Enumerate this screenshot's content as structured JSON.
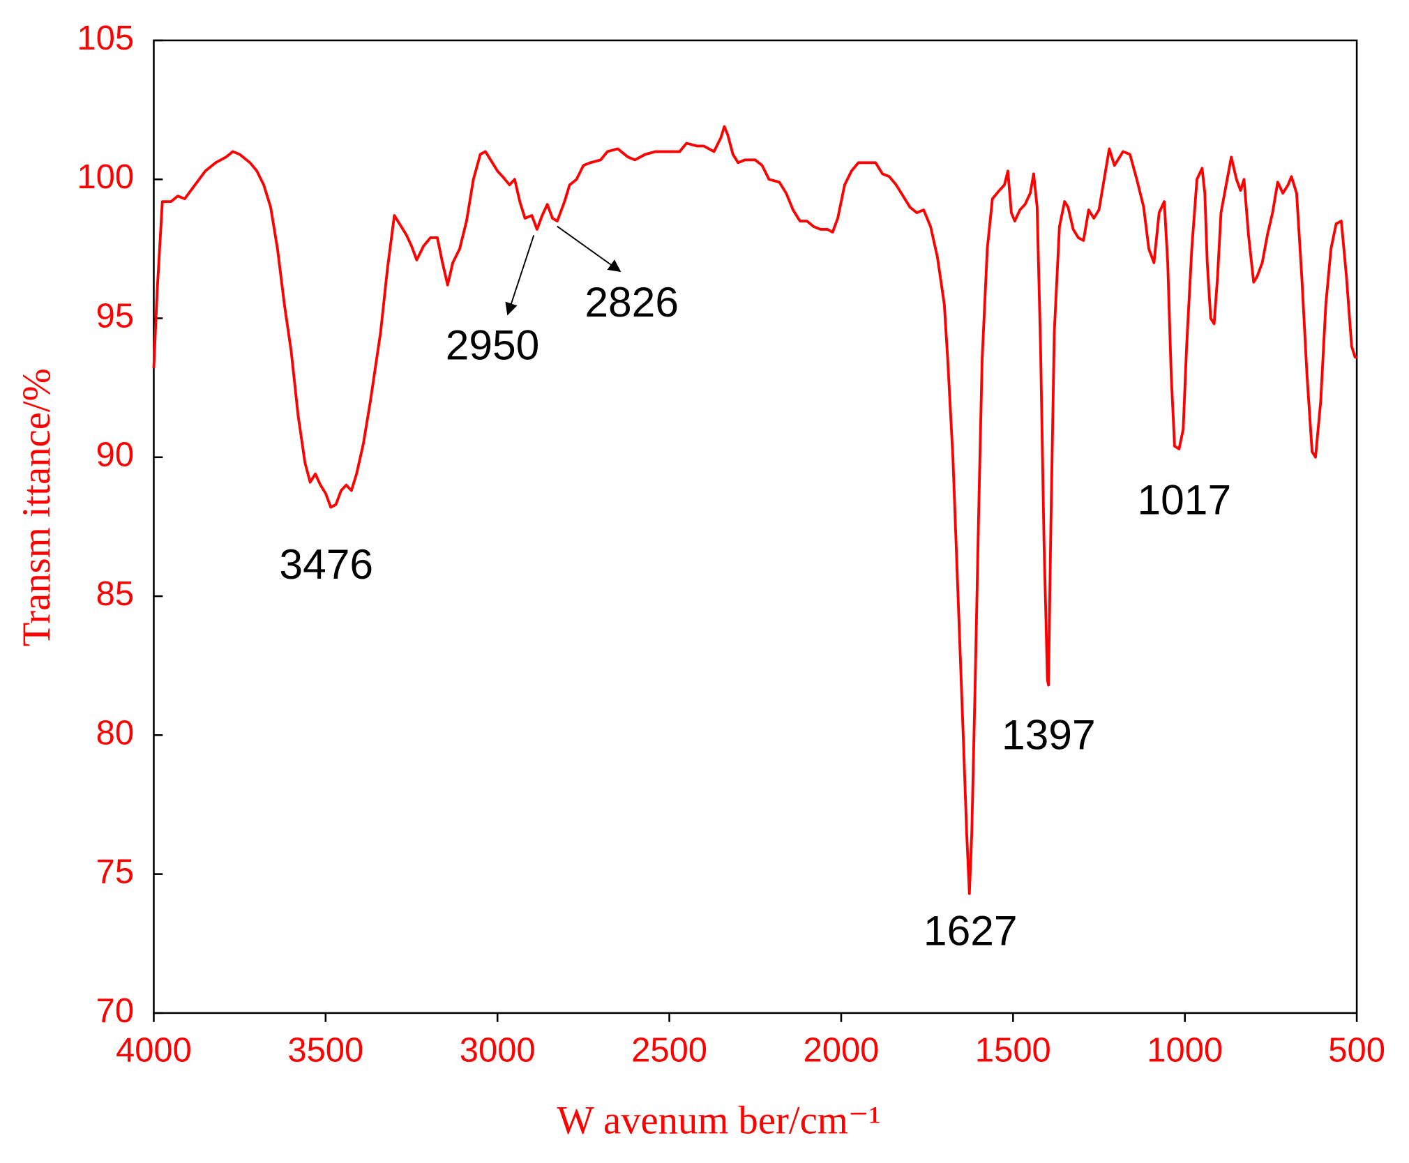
{
  "chart_data": {
    "type": "line",
    "xlabel": "W avenum ber/cm⁻¹",
    "ylabel": "Transm ittance/%",
    "color": "#ff0000",
    "xlim": [
      4000,
      500
    ],
    "xticks": [
      4000,
      3500,
      3000,
      2500,
      2000,
      1500,
      1000,
      500
    ],
    "ylim": [
      70,
      105
    ],
    "yticks": [
      70,
      75,
      80,
      85,
      90,
      95,
      100,
      105
    ],
    "annotations": [
      "3476",
      "2950",
      "2826",
      "1627",
      "1397",
      "1017"
    ],
    "x": [
      4000,
      3990,
      3975,
      3950,
      3930,
      3910,
      3880,
      3850,
      3820,
      3790,
      3770,
      3750,
      3720,
      3700,
      3680,
      3660,
      3640,
      3620,
      3600,
      3580,
      3560,
      3545,
      3530,
      3515,
      3500,
      3485,
      3470,
      3455,
      3440,
      3425,
      3410,
      3390,
      3370,
      3340,
      3320,
      3300,
      3285,
      3265,
      3250,
      3235,
      3215,
      3195,
      3175,
      3160,
      3145,
      3130,
      3110,
      3090,
      3070,
      3050,
      3035,
      3015,
      3000,
      2985,
      2965,
      2950,
      2935,
      2920,
      2900,
      2885,
      2870,
      2855,
      2840,
      2826,
      2805,
      2790,
      2770,
      2750,
      2730,
      2700,
      2680,
      2650,
      2620,
      2600,
      2570,
      2540,
      2500,
      2470,
      2450,
      2420,
      2400,
      2370,
      2350,
      2340,
      2330,
      2315,
      2300,
      2280,
      2250,
      2230,
      2210,
      2180,
      2160,
      2140,
      2120,
      2100,
      2080,
      2060,
      2040,
      2025,
      2010,
      1990,
      1970,
      1950,
      1930,
      1900,
      1880,
      1860,
      1840,
      1820,
      1800,
      1780,
      1760,
      1740,
      1720,
      1700,
      1690,
      1675,
      1660,
      1645,
      1635,
      1627,
      1620,
      1610,
      1600,
      1590,
      1575,
      1560,
      1540,
      1525,
      1515,
      1505,
      1495,
      1480,
      1465,
      1450,
      1440,
      1430,
      1420,
      1410,
      1400,
      1397,
      1390,
      1380,
      1365,
      1350,
      1340,
      1325,
      1310,
      1295,
      1280,
      1265,
      1250,
      1235,
      1220,
      1205,
      1190,
      1180,
      1160,
      1140,
      1120,
      1105,
      1090,
      1075,
      1060,
      1050,
      1040,
      1030,
      1017,
      1005,
      995,
      980,
      965,
      950,
      942,
      935,
      925,
      915,
      905,
      895,
      880,
      865,
      850,
      838,
      828,
      815,
      800,
      790,
      775,
      760,
      745,
      730,
      715,
      700,
      690,
      675,
      660,
      645,
      630,
      620,
      605,
      590,
      575,
      560,
      545,
      530,
      515,
      505,
      500
    ],
    "values": [
      93.2,
      96,
      99.2,
      99.2,
      99.4,
      99.3,
      99.8,
      100.3,
      100.6,
      100.8,
      101.0,
      100.9,
      100.6,
      100.3,
      99.8,
      99.0,
      97.5,
      95.5,
      93.8,
      91.5,
      89.8,
      89.1,
      89.4,
      89.0,
      88.7,
      88.2,
      88.3,
      88.8,
      89.0,
      88.8,
      89.4,
      90.5,
      92.0,
      94.5,
      96.8,
      98.7,
      98.4,
      98.0,
      97.6,
      97.1,
      97.6,
      97.9,
      97.9,
      97.0,
      96.2,
      97.0,
      97.5,
      98.5,
      100.0,
      100.9,
      101.0,
      100.6,
      100.3,
      100.1,
      99.8,
      100.0,
      99.2,
      98.6,
      98.7,
      98.2,
      98.7,
      99.1,
      98.6,
      98.5,
      99.2,
      99.8,
      100.0,
      100.5,
      100.6,
      100.7,
      101.0,
      101.1,
      100.8,
      100.7,
      100.9,
      101.0,
      101.0,
      101.0,
      101.3,
      101.2,
      101.2,
      101.0,
      101.5,
      101.9,
      101.6,
      100.9,
      100.6,
      100.7,
      100.7,
      100.5,
      100.0,
      99.9,
      99.5,
      98.9,
      98.5,
      98.5,
      98.3,
      98.2,
      98.2,
      98.1,
      98.6,
      99.8,
      100.3,
      100.6,
      100.6,
      100.6,
      100.2,
      100.1,
      99.8,
      99.4,
      99.0,
      98.8,
      98.9,
      98.3,
      97.2,
      95.5,
      93.5,
      90.0,
      85.0,
      80.0,
      76.5,
      74.3,
      76.5,
      82.0,
      88.0,
      93.5,
      97.5,
      99.3,
      99.6,
      99.8,
      100.3,
      98.8,
      98.5,
      98.9,
      99.1,
      99.5,
      100.2,
      99.0,
      94.0,
      87.0,
      82.0,
      81.8,
      87.5,
      94.5,
      98.3,
      99.2,
      99.0,
      98.2,
      97.9,
      97.8,
      98.9,
      98.6,
      98.9,
      100.0,
      101.1,
      100.5,
      100.8,
      101.0,
      100.9,
      100.0,
      99.0,
      97.5,
      97.0,
      98.8,
      99.2,
      97.0,
      93.0,
      90.4,
      90.3,
      91.0,
      94.0,
      97.5,
      100.0,
      100.4,
      99.5,
      97.0,
      95.0,
      94.8,
      96.5,
      98.8,
      99.8,
      100.8,
      100.0,
      99.6,
      100.0,
      98.0,
      96.3,
      96.5,
      97.0,
      98.0,
      98.8,
      99.9,
      99.5,
      99.8,
      100.1,
      99.5,
      96.5,
      93.0,
      90.2,
      90.0,
      92.0,
      95.5,
      97.5,
      98.4,
      98.5,
      96.5,
      94.0,
      93.6,
      93.6
    ]
  }
}
